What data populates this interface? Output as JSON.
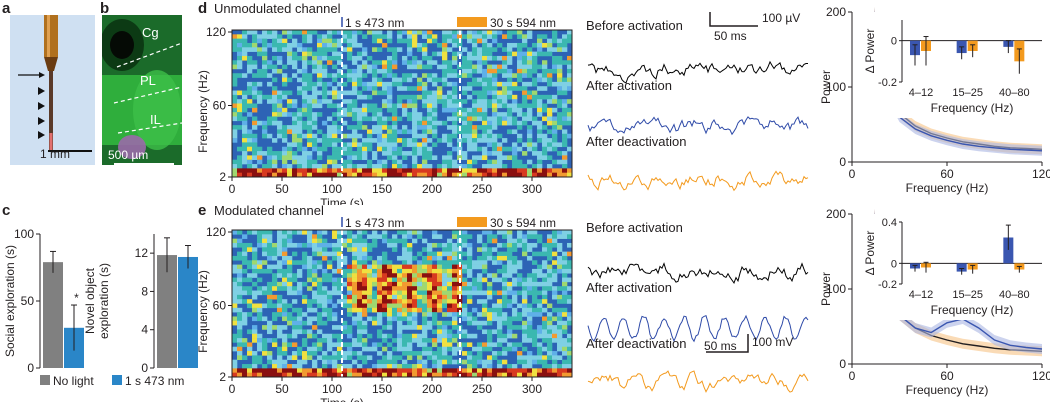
{
  "panels": {
    "a": {
      "label": "a",
      "scale_bar": "1 mm"
    },
    "b": {
      "label": "b",
      "regions": [
        "Cg",
        "PL",
        "IL"
      ],
      "scale_bar": "500 µm"
    },
    "c": {
      "label": "c",
      "legend": [
        "No light",
        "1 s 473 nm"
      ],
      "colors": {
        "no_light": "#808080",
        "light": "#2a86c8"
      }
    },
    "d": {
      "label": "d",
      "title": "Unmodulated channel"
    },
    "e": {
      "label": "e",
      "title": "Modulated channel"
    }
  },
  "spectrogram": {
    "stim1": "1 s 473 nm",
    "stim2": "30 s 594 nm",
    "ylabel": "Frequency (Hz)",
    "xlabel": "Time (s)",
    "yticks": [
      "2",
      "60",
      "120"
    ],
    "xticks": [
      "0",
      "50",
      "100",
      "150",
      "200",
      "250",
      "300"
    ]
  },
  "traces": {
    "before": "Before activation",
    "after": "After activation",
    "after_deact": "After deactivation",
    "d_scale_v": "100 µV",
    "d_scale_t": "50 ms",
    "e_scale_v": "100 mV",
    "e_scale_t": "50 ms",
    "colors": {
      "before": "#000000",
      "after": "#2e4aa8",
      "deact": "#f39a1e"
    }
  },
  "chart_data": [
    {
      "type": "bar",
      "panel": "c-left",
      "categories": [
        "No light",
        "1 s 473 nm"
      ],
      "values": [
        79,
        30
      ],
      "errors": [
        8,
        17
      ],
      "ylabel": "Social exploration (s)",
      "ylim": [
        0,
        100
      ],
      "yticks": [
        0,
        50,
        100
      ],
      "annotation": "*"
    },
    {
      "type": "bar",
      "panel": "c-right",
      "categories": [
        "No light",
        "1 s 473 nm"
      ],
      "values": [
        11.8,
        11.6
      ],
      "errors": [
        1.8,
        1.2
      ],
      "ylabel": "Novel object exploration (s)",
      "ylim": [
        0,
        14
      ],
      "yticks": [
        0,
        4,
        8,
        12
      ]
    },
    {
      "type": "line",
      "panel": "d-right",
      "xlabel": "Frequency (Hz)",
      "ylabel": "Power",
      "xlim": [
        0,
        120
      ],
      "ylim": [
        0,
        200
      ],
      "xticks": [
        0,
        60,
        120
      ],
      "yticks": [
        0,
        100,
        200
      ],
      "x": [
        14,
        20,
        25,
        30,
        40,
        50,
        60,
        70,
        80,
        90,
        100,
        110,
        120
      ],
      "series": [
        {
          "values": [
            200,
            120,
            85,
            65,
            48,
            38,
            32,
            27,
            24,
            21,
            19,
            18,
            17
          ]
        },
        {
          "values": [
            200,
            115,
            80,
            60,
            44,
            35,
            29,
            24,
            21,
            19,
            17,
            16,
            15
          ]
        }
      ],
      "inset": {
        "type": "bar",
        "categories": [
          "4–12",
          "15–25",
          "40–80"
        ],
        "series": [
          {
            "values": [
              -0.07,
              -0.06,
              -0.03
            ],
            "errors": [
              0.05,
              0.03,
              0.03
            ]
          },
          {
            "values": [
              -0.05,
              -0.05,
              -0.1
            ],
            "errors": [
              0.07,
              0.03,
              0.06
            ]
          }
        ],
        "xlabel": "Frequency (Hz)",
        "ylabel": "Δ Power",
        "ylim": [
          -0.2,
          0.1
        ],
        "yticks": [
          0,
          -0.2
        ]
      }
    },
    {
      "type": "line",
      "panel": "e-right",
      "xlabel": "Frequency (Hz)",
      "ylabel": "Power",
      "xlim": [
        0,
        120
      ],
      "ylim": [
        0,
        200
      ],
      "xticks": [
        0,
        60,
        120
      ],
      "yticks": [
        0,
        100,
        200
      ],
      "x": [
        14,
        20,
        25,
        30,
        40,
        50,
        60,
        70,
        80,
        90,
        100,
        110,
        120
      ],
      "series": [
        {
          "values": [
            200,
            120,
            85,
            65,
            48,
            38,
            32,
            27,
            24,
            21,
            19,
            18,
            17
          ]
        },
        {
          "values": [
            200,
            120,
            85,
            65,
            48,
            42,
            55,
            60,
            48,
            32,
            25,
            22,
            20
          ]
        }
      ],
      "inset": {
        "type": "bar",
        "categories": [
          "4–12",
          "15–25",
          "40–80"
        ],
        "series": [
          {
            "values": [
              -0.05,
              -0.08,
              0.25
            ],
            "errors": [
              0.03,
              0.03,
              0.12
            ]
          },
          {
            "values": [
              -0.04,
              -0.06,
              -0.06
            ],
            "errors": [
              0.05,
              0.04,
              0.03
            ]
          }
        ],
        "xlabel": "Frequency (Hz)",
        "ylabel": "Δ Power",
        "ylim": [
          -0.2,
          0.4
        ],
        "yticks": [
          0.4,
          0,
          -0.2
        ]
      }
    }
  ]
}
